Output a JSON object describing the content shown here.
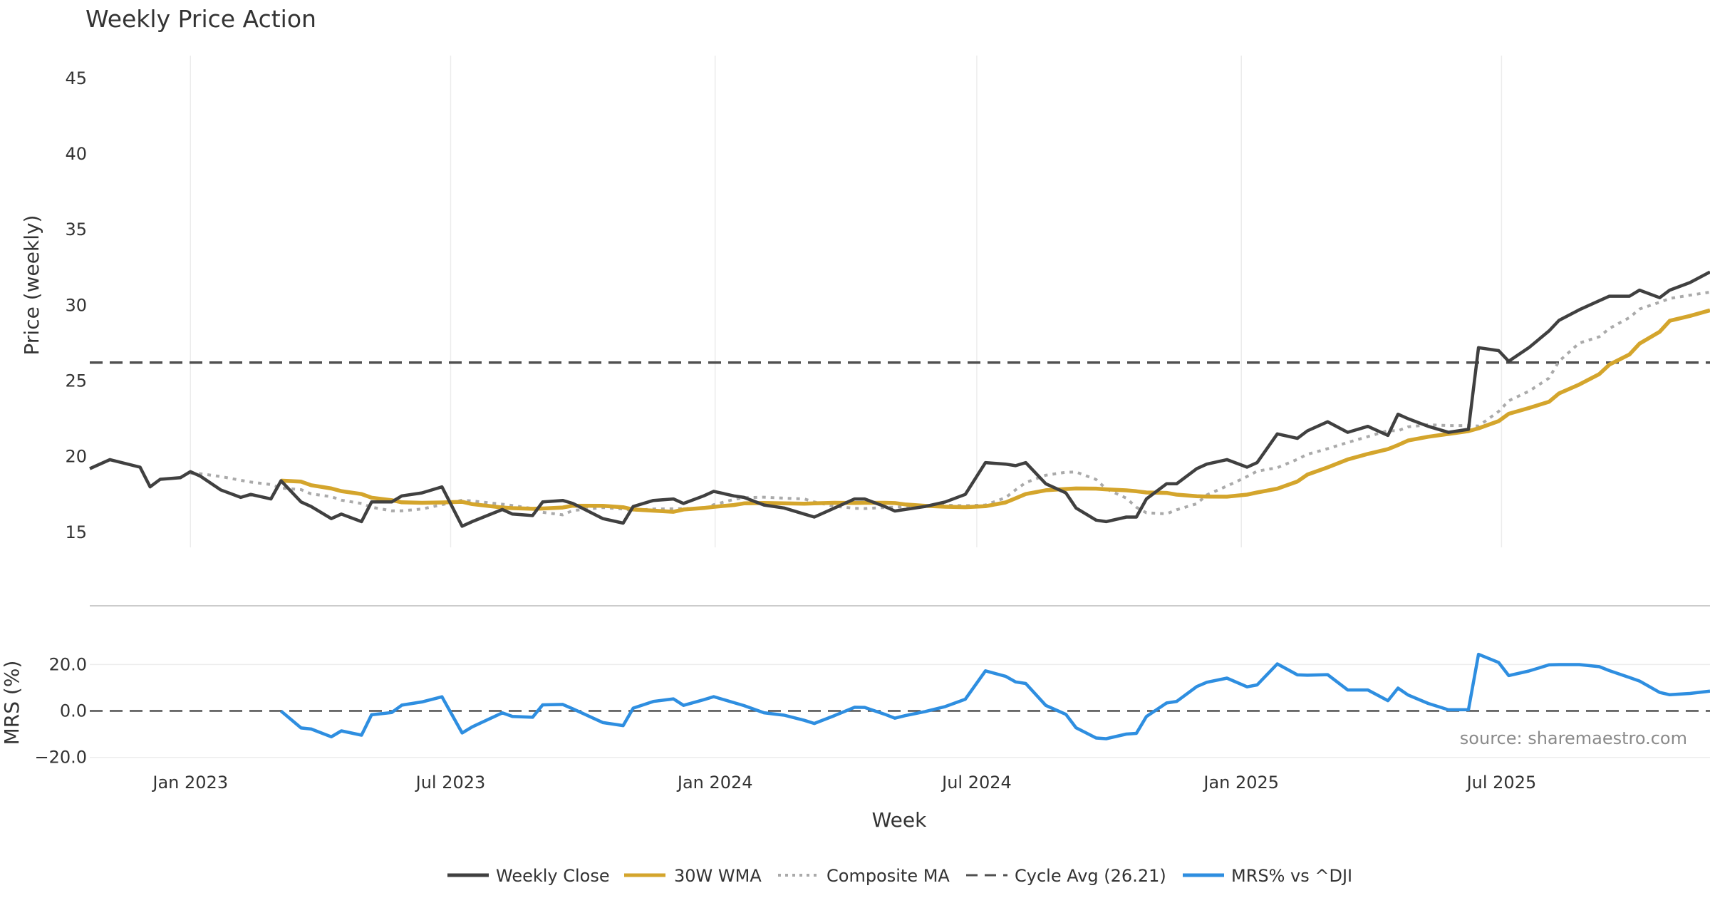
{
  "chart_data": {
    "type": "line",
    "title": "Weekly Price Action",
    "xlabel": "Week",
    "colors": {
      "close": "#404040",
      "wma": "#d4a52c",
      "composite": "#aaaaaa",
      "cycle": "#505050",
      "mrs": "#2e8ee0",
      "buy": "#1aa31a",
      "sell": "#cc1111"
    },
    "x_ticks": [
      "Jan 2023",
      "Jul 2023",
      "Jan 2024",
      "Jul 2024",
      "Jan 2025",
      "Jul 2025"
    ],
    "x_tick_dates": [
      "2023-01-01",
      "2023-07-01",
      "2024-01-01",
      "2024-07-01",
      "2025-01-01",
      "2025-07-01"
    ],
    "x_range": [
      "2022-10-23",
      "2025-11-23"
    ],
    "price_panel": {
      "ylabel": "Price (weekly)",
      "ylim": [
        14,
        46.5
      ],
      "y_ticks": [
        15,
        20,
        25,
        30,
        35,
        40,
        45
      ],
      "cycle_avg": 26.21,
      "series": {
        "close": {
          "name": "Weekly Close",
          "points": [
            [
              "2022-10-23",
              19.2
            ],
            [
              "2022-11-06",
              19.8
            ],
            [
              "2022-11-27",
              19.3
            ],
            [
              "2022-12-04",
              18.0
            ],
            [
              "2022-12-11",
              18.5
            ],
            [
              "2022-12-25",
              18.6
            ],
            [
              "2023-01-01",
              19.0
            ],
            [
              "2023-01-08",
              18.7
            ],
            [
              "2023-01-22",
              17.8
            ],
            [
              "2023-02-05",
              17.3
            ],
            [
              "2023-02-12",
              17.5
            ],
            [
              "2023-02-26",
              17.2
            ],
            [
              "2023-03-05",
              18.4
            ],
            [
              "2023-03-19",
              17.0
            ],
            [
              "2023-03-26",
              16.7
            ],
            [
              "2023-04-09",
              15.9
            ],
            [
              "2023-04-16",
              16.2
            ],
            [
              "2023-04-30",
              15.7
            ],
            [
              "2023-05-07",
              17.0
            ],
            [
              "2023-05-21",
              17.0
            ],
            [
              "2023-05-28",
              17.4
            ],
            [
              "2023-06-11",
              17.6
            ],
            [
              "2023-06-25",
              18.0
            ],
            [
              "2023-07-09",
              15.4
            ],
            [
              "2023-07-16",
              15.7
            ],
            [
              "2023-08-06",
              16.5
            ],
            [
              "2023-08-13",
              16.2
            ],
            [
              "2023-08-27",
              16.1
            ],
            [
              "2023-09-03",
              17.0
            ],
            [
              "2023-09-17",
              17.1
            ],
            [
              "2023-09-24",
              16.9
            ],
            [
              "2023-10-15",
              15.9
            ],
            [
              "2023-10-29",
              15.6
            ],
            [
              "2023-11-05",
              16.7
            ],
            [
              "2023-11-19",
              17.1
            ],
            [
              "2023-12-03",
              17.2
            ],
            [
              "2023-12-10",
              16.9
            ],
            [
              "2023-12-24",
              17.4
            ],
            [
              "2023-12-31",
              17.7
            ],
            [
              "2024-01-14",
              17.4
            ],
            [
              "2024-01-21",
              17.3
            ],
            [
              "2024-02-04",
              16.8
            ],
            [
              "2024-02-18",
              16.6
            ],
            [
              "2024-03-03",
              16.2
            ],
            [
              "2024-03-10",
              16.0
            ],
            [
              "2024-03-24",
              16.6
            ],
            [
              "2024-04-07",
              17.2
            ],
            [
              "2024-04-14",
              17.2
            ],
            [
              "2024-04-28",
              16.7
            ],
            [
              "2024-05-05",
              16.4
            ],
            [
              "2024-05-12",
              16.5
            ],
            [
              "2024-05-26",
              16.7
            ],
            [
              "2024-06-09",
              17.0
            ],
            [
              "2024-06-23",
              17.5
            ],
            [
              "2024-07-07",
              19.6
            ],
            [
              "2024-07-21",
              19.5
            ],
            [
              "2024-07-28",
              19.4
            ],
            [
              "2024-08-04",
              19.6
            ],
            [
              "2024-08-18",
              18.2
            ],
            [
              "2024-09-01",
              17.6
            ],
            [
              "2024-09-08",
              16.6
            ],
            [
              "2024-09-22",
              15.8
            ],
            [
              "2024-09-29",
              15.7
            ],
            [
              "2024-10-13",
              16.0
            ],
            [
              "2024-10-20",
              16.0
            ],
            [
              "2024-10-27",
              17.2
            ],
            [
              "2024-11-10",
              18.2
            ],
            [
              "2024-11-17",
              18.2
            ],
            [
              "2024-12-01",
              19.2
            ],
            [
              "2024-12-08",
              19.5
            ],
            [
              "2024-12-22",
              19.8
            ],
            [
              "2025-01-05",
              19.3
            ],
            [
              "2025-01-12",
              19.6
            ],
            [
              "2025-01-26",
              21.5
            ],
            [
              "2025-02-09",
              21.2
            ],
            [
              "2025-02-16",
              21.7
            ],
            [
              "2025-03-02",
              22.3
            ],
            [
              "2025-03-16",
              21.6
            ],
            [
              "2025-03-30",
              22.0
            ],
            [
              "2025-04-13",
              21.4
            ],
            [
              "2025-04-20",
              22.8
            ],
            [
              "2025-04-27",
              22.5
            ],
            [
              "2025-05-11",
              22.0
            ],
            [
              "2025-05-25",
              21.6
            ],
            [
              "2025-06-08",
              21.8
            ],
            [
              "2025-06-15",
              27.2
            ],
            [
              "2025-06-29",
              27.0
            ],
            [
              "2025-07-06",
              26.3
            ],
            [
              "2025-07-20",
              27.2
            ],
            [
              "2025-08-03",
              28.3
            ],
            [
              "2025-08-10",
              29.0
            ],
            [
              "2025-08-24",
              29.7
            ],
            [
              "2025-09-07",
              30.3
            ],
            [
              "2025-09-14",
              30.6
            ],
            [
              "2025-09-28",
              30.6
            ],
            [
              "2025-10-05",
              31.0
            ],
            [
              "2025-10-19",
              30.5
            ],
            [
              "2025-10-26",
              31.0
            ],
            [
              "2025-11-09",
              31.5
            ],
            [
              "2025-11-23",
              32.2
            ]
          ]
        }
      }
    },
    "mrs_panel": {
      "ylabel": "MRS (%)",
      "ylim": [
        -21,
        33
      ],
      "y_ticks": [
        20.0,
        0.0,
        -20.0
      ],
      "y_tick_labels": [
        "20.0",
        "0.0",
        "−20.0"
      ]
    },
    "legend": [
      "Weekly Close",
      "30W WMA",
      "Composite MA",
      "Cycle Avg (26.21)",
      "MRS% vs ^DJI"
    ],
    "source_text": "source: sharemaestro.com"
  }
}
